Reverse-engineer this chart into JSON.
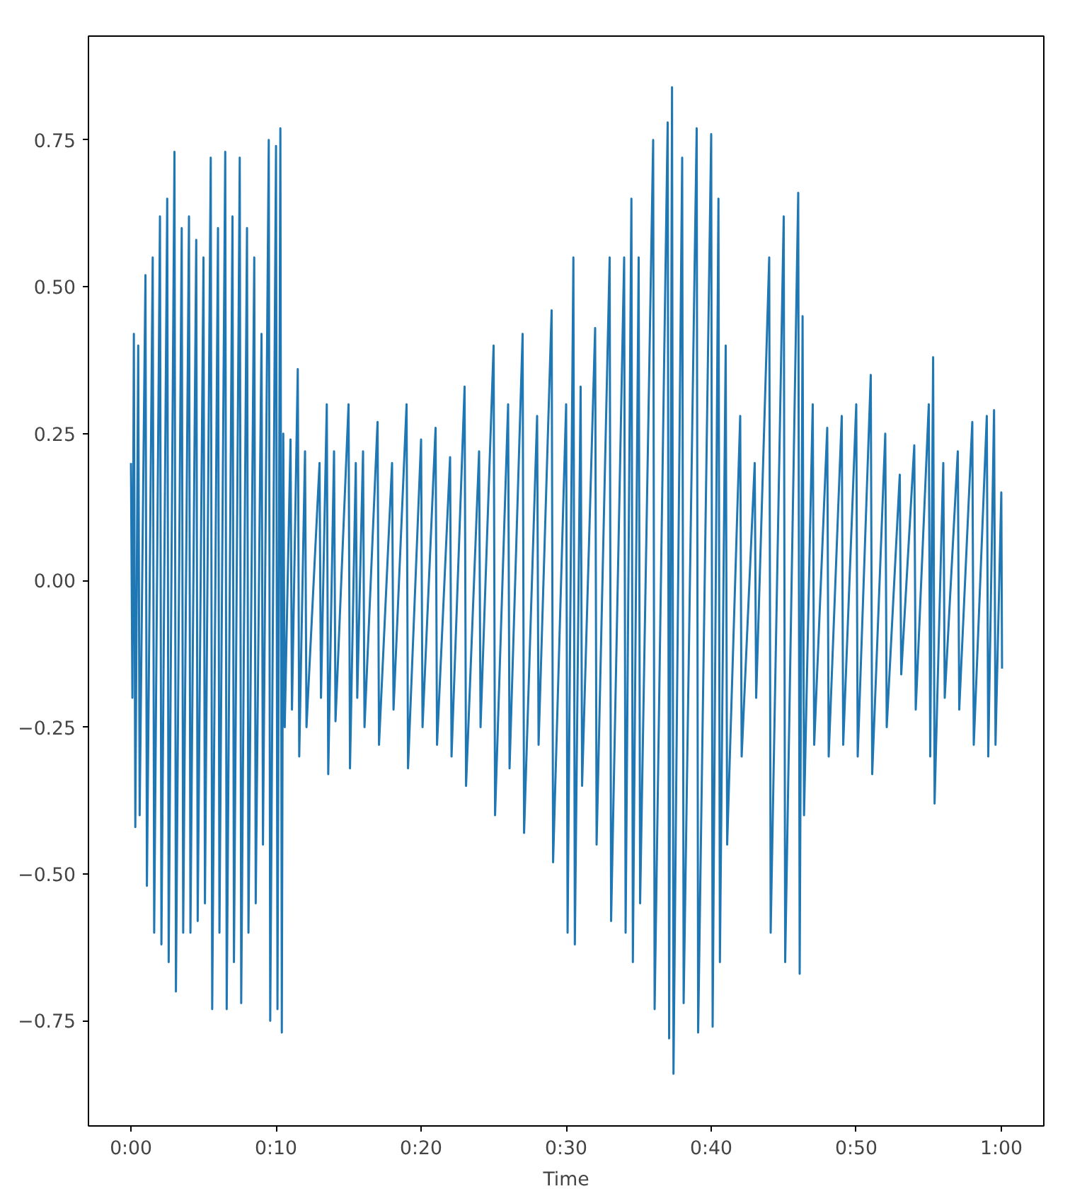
{
  "chart_data": {
    "type": "line",
    "xlabel": "Time",
    "series": [
      {
        "color": "#1f77b4",
        "x": [
          0,
          0.1,
          0.2,
          0.3,
          0.5,
          0.6,
          1,
          1.1,
          1.5,
          1.6,
          2,
          2.1,
          2.5,
          2.6,
          3,
          3.1,
          3.5,
          3.6,
          4,
          4.1,
          4.5,
          4.6,
          5,
          5.1,
          5.5,
          5.6,
          6,
          6.1,
          6.5,
          6.6,
          7,
          7.1,
          7.5,
          7.6,
          8,
          8.1,
          8.5,
          8.6,
          9,
          9.1,
          9.5,
          9.6,
          10,
          10.1,
          10.3,
          10.4,
          10.5,
          10.6,
          11,
          11.1,
          11.5,
          11.6,
          12,
          12.1,
          13,
          13.1,
          13.5,
          13.6,
          14,
          14.1,
          15,
          15.1,
          15.5,
          15.6,
          16,
          16.1,
          17,
          17.1,
          18,
          18.1,
          19,
          19.1,
          20,
          20.1,
          21,
          21.1,
          22,
          22.1,
          23,
          23.1,
          24,
          24.1,
          25,
          25.1,
          26,
          26.1,
          27,
          27.1,
          28,
          28.1,
          29,
          29.1,
          30,
          30.1,
          30.5,
          30.6,
          31,
          31.1,
          32,
          32.1,
          33,
          33.1,
          34,
          34.1,
          34.5,
          34.6,
          35,
          35.1,
          36,
          36.1,
          37,
          37.1,
          37.3,
          37.4,
          38,
          38.1,
          39,
          39.1,
          40,
          40.1,
          40.5,
          40.6,
          41,
          41.1,
          42,
          42.1,
          43,
          43.1,
          44,
          44.1,
          45,
          45.1,
          46,
          46.1,
          46.3,
          46.4,
          47,
          47.1,
          48,
          48.1,
          49,
          49.1,
          50,
          50.1,
          51,
          51.1,
          52,
          52.1,
          53,
          53.1,
          54,
          54.1,
          55,
          55.1,
          55.3,
          55.4,
          56,
          56.1,
          57,
          57.1,
          58,
          58.1,
          59,
          59.1,
          59.5,
          59.6,
          60,
          60.05
        ],
        "values": [
          0.2,
          -0.2,
          0.42,
          -0.42,
          0.4,
          -0.4,
          0.52,
          -0.52,
          0.55,
          -0.6,
          0.62,
          -0.62,
          0.65,
          -0.65,
          0.73,
          -0.7,
          0.6,
          -0.6,
          0.62,
          -0.6,
          0.58,
          -0.58,
          0.55,
          -0.55,
          0.72,
          -0.73,
          0.6,
          -0.6,
          0.73,
          -0.73,
          0.62,
          -0.65,
          0.72,
          -0.72,
          0.6,
          -0.6,
          0.55,
          -0.55,
          0.42,
          -0.45,
          0.75,
          -0.75,
          0.74,
          -0.73,
          0.77,
          -0.77,
          0.25,
          -0.25,
          0.24,
          -0.22,
          0.36,
          -0.3,
          0.22,
          -0.25,
          0.2,
          -0.2,
          0.3,
          -0.33,
          0.22,
          -0.24,
          0.3,
          -0.32,
          0.2,
          -0.2,
          0.22,
          -0.25,
          0.27,
          -0.28,
          0.2,
          -0.22,
          0.3,
          -0.32,
          0.24,
          -0.25,
          0.26,
          -0.28,
          0.21,
          -0.3,
          0.33,
          -0.35,
          0.22,
          -0.25,
          0.4,
          -0.4,
          0.3,
          -0.32,
          0.42,
          -0.43,
          0.28,
          -0.28,
          0.46,
          -0.48,
          0.3,
          -0.6,
          0.55,
          -0.62,
          0.33,
          -0.35,
          0.43,
          -0.45,
          0.55,
          -0.58,
          0.55,
          -0.6,
          0.65,
          -0.65,
          0.55,
          -0.55,
          0.75,
          -0.73,
          0.78,
          -0.78,
          0.84,
          -0.84,
          0.72,
          -0.72,
          0.77,
          -0.77,
          0.76,
          -0.76,
          0.65,
          -0.65,
          0.4,
          -0.45,
          0.28,
          -0.3,
          0.2,
          -0.2,
          0.55,
          -0.6,
          0.62,
          -0.65,
          0.66,
          -0.67,
          0.45,
          -0.4,
          0.3,
          -0.28,
          0.26,
          -0.3,
          0.28,
          -0.28,
          0.3,
          -0.3,
          0.35,
          -0.33,
          0.25,
          -0.25,
          0.18,
          -0.16,
          0.23,
          -0.22,
          0.3,
          -0.3,
          0.38,
          -0.38,
          0.2,
          -0.2,
          0.22,
          -0.22,
          0.27,
          -0.28,
          0.28,
          -0.3,
          0.29,
          -0.28,
          0.15,
          -0.15
        ]
      }
    ],
    "xlim": [
      -2.93,
      62.93
    ],
    "ylim": [
      -0.929,
      0.927
    ],
    "xticks": [
      {
        "value": 0,
        "label": "0:00"
      },
      {
        "value": 10,
        "label": "0:10"
      },
      {
        "value": 20,
        "label": "0:20"
      },
      {
        "value": 30,
        "label": "0:30"
      },
      {
        "value": 40,
        "label": "0:40"
      },
      {
        "value": 50,
        "label": "0:50"
      },
      {
        "value": 60,
        "label": "1:00"
      }
    ],
    "yticks": [
      {
        "value": -0.75,
        "label": "−0.75"
      },
      {
        "value": -0.5,
        "label": "−0.50"
      },
      {
        "value": -0.25,
        "label": "−0.25"
      },
      {
        "value": 0,
        "label": "0.00"
      },
      {
        "value": 0.25,
        "label": "0.25"
      },
      {
        "value": 0.5,
        "label": "0.50"
      },
      {
        "value": 0.75,
        "label": "0.75"
      }
    ],
    "grid": false,
    "marker": "none",
    "line_style": "solid"
  }
}
